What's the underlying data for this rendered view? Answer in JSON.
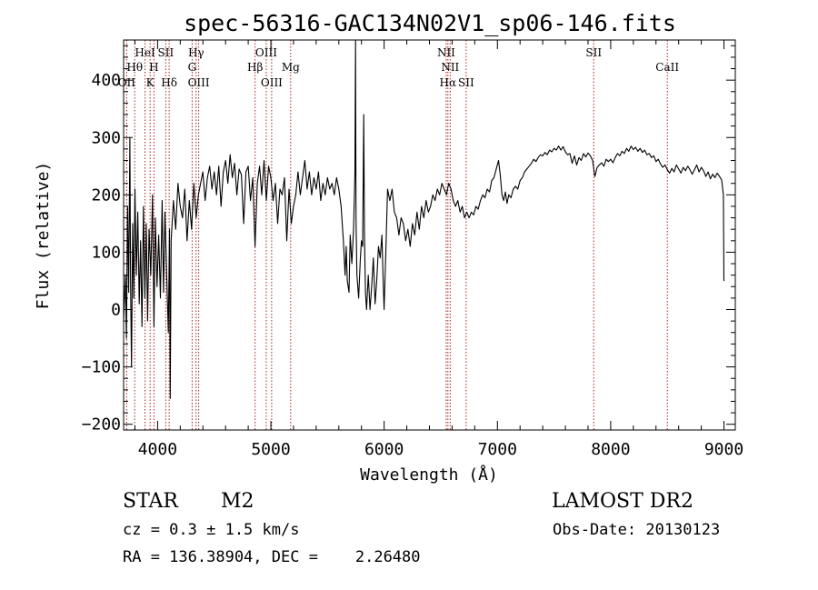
{
  "chart_data": {
    "type": "line",
    "title": "spec-56316-GAC134N02V1_sp06-146.fits",
    "xlabel": "Wavelength (Å)",
    "ylabel": "Flux (relative)",
    "xlim": [
      3700,
      9100
    ],
    "ylim": [
      -210,
      470
    ],
    "xticks": [
      4000,
      5000,
      6000,
      7000,
      8000,
      9000
    ],
    "yticks": [
      -200,
      -100,
      0,
      100,
      200,
      300,
      400
    ],
    "grid": false,
    "line_color": "#000000",
    "marker_color": "#aa2222",
    "spectral_lines": [
      {
        "label": "Hθ",
        "x": 3798,
        "row": 2
      },
      {
        "label": "OII",
        "x": 3727,
        "row": 3
      },
      {
        "label": "HeI",
        "x": 3889,
        "row": 1
      },
      {
        "label": "H",
        "x": 3968,
        "row": 2
      },
      {
        "label": "K",
        "x": 3934,
        "row": 3
      },
      {
        "label": "SII",
        "x": 4072,
        "row": 1
      },
      {
        "label": "Hδ",
        "x": 4102,
        "row": 3
      },
      {
        "label": "Hγ",
        "x": 4340,
        "row": 1
      },
      {
        "label": "G",
        "x": 4305,
        "row": 2
      },
      {
        "label": "OIII",
        "x": 4363,
        "row": 3
      },
      {
        "label": "OIII",
        "x": 4959,
        "row": 1
      },
      {
        "label": "Hβ",
        "x": 4861,
        "row": 2
      },
      {
        "label": "Mg",
        "x": 5175,
        "row": 2
      },
      {
        "label": "OIII",
        "x": 5007,
        "row": 3
      },
      {
        "label": "NII",
        "x": 6548,
        "row": 1
      },
      {
        "label": "NII",
        "x": 6583,
        "row": 2
      },
      {
        "label": "Hα",
        "x": 6563,
        "row": 3
      },
      {
        "label": "SII",
        "x": 6724,
        "row": 3
      },
      {
        "label": "SII",
        "x": 7850,
        "row": 1
      },
      {
        "label": "CaII",
        "x": 8500,
        "row": 2
      }
    ],
    "spectrum": [
      [
        3700,
        -20
      ],
      [
        3715,
        60
      ],
      [
        3725,
        -50
      ],
      [
        3735,
        180
      ],
      [
        3745,
        30
      ],
      [
        3755,
        300
      ],
      [
        3762,
        40
      ],
      [
        3770,
        -100
      ],
      [
        3780,
        150
      ],
      [
        3790,
        20
      ],
      [
        3800,
        210
      ],
      [
        3812,
        60
      ],
      [
        3825,
        170
      ],
      [
        3838,
        10
      ],
      [
        3850,
        120
      ],
      [
        3862,
        -30
      ],
      [
        3875,
        180
      ],
      [
        3888,
        20
      ],
      [
        3900,
        150
      ],
      [
        3912,
        -20
      ],
      [
        3925,
        140
      ],
      [
        3940,
        60
      ],
      [
        3955,
        200
      ],
      [
        3968,
        -30
      ],
      [
        3980,
        160
      ],
      [
        3995,
        40
      ],
      [
        4010,
        130
      ],
      [
        4025,
        20
      ],
      [
        4040,
        190
      ],
      [
        4052,
        30
      ],
      [
        4065,
        170
      ],
      [
        4080,
        60
      ],
      [
        4095,
        -40
      ],
      [
        4105,
        140
      ],
      [
        4112,
        -155
      ],
      [
        4120,
        120
      ],
      [
        4140,
        190
      ],
      [
        4160,
        140
      ],
      [
        4180,
        220
      ],
      [
        4200,
        180
      ],
      [
        4220,
        160
      ],
      [
        4240,
        210
      ],
      [
        4260,
        120
      ],
      [
        4280,
        190
      ],
      [
        4300,
        140
      ],
      [
        4320,
        220
      ],
      [
        4340,
        160
      ],
      [
        4360,
        200
      ],
      [
        4380,
        220
      ],
      [
        4400,
        240
      ],
      [
        4420,
        190
      ],
      [
        4440,
        230
      ],
      [
        4460,
        250
      ],
      [
        4480,
        210
      ],
      [
        4500,
        240
      ],
      [
        4520,
        200
      ],
      [
        4540,
        250
      ],
      [
        4560,
        180
      ],
      [
        4580,
        240
      ],
      [
        4600,
        260
      ],
      [
        4620,
        220
      ],
      [
        4640,
        270
      ],
      [
        4660,
        230
      ],
      [
        4680,
        255
      ],
      [
        4700,
        200
      ],
      [
        4720,
        245
      ],
      [
        4740,
        235
      ],
      [
        4760,
        150
      ],
      [
        4780,
        240
      ],
      [
        4800,
        250
      ],
      [
        4820,
        190
      ],
      [
        4840,
        230
      ],
      [
        4860,
        110
      ],
      [
        4880,
        220
      ],
      [
        4900,
        250
      ],
      [
        4920,
        200
      ],
      [
        4940,
        260
      ],
      [
        4960,
        190
      ],
      [
        4980,
        250
      ],
      [
        5000,
        230
      ],
      [
        5020,
        190
      ],
      [
        5040,
        220
      ],
      [
        5060,
        150
      ],
      [
        5080,
        210
      ],
      [
        5100,
        200
      ],
      [
        5120,
        230
      ],
      [
        5140,
        120
      ],
      [
        5160,
        210
      ],
      [
        5180,
        150
      ],
      [
        5200,
        180
      ],
      [
        5220,
        200
      ],
      [
        5240,
        240
      ],
      [
        5260,
        200
      ],
      [
        5280,
        230
      ],
      [
        5300,
        260
      ],
      [
        5320,
        210
      ],
      [
        5340,
        240
      ],
      [
        5360,
        200
      ],
      [
        5380,
        230
      ],
      [
        5400,
        210
      ],
      [
        5420,
        240
      ],
      [
        5440,
        190
      ],
      [
        5460,
        220
      ],
      [
        5480,
        200
      ],
      [
        5500,
        230
      ],
      [
        5520,
        210
      ],
      [
        5540,
        220
      ],
      [
        5560,
        200
      ],
      [
        5580,
        230
      ],
      [
        5600,
        210
      ],
      [
        5620,
        180
      ],
      [
        5640,
        120
      ],
      [
        5655,
        60
      ],
      [
        5665,
        110
      ],
      [
        5675,
        50
      ],
      [
        5690,
        30
      ],
      [
        5700,
        130
      ],
      [
        5715,
        80
      ],
      [
        5730,
        140
      ],
      [
        5742,
        240
      ],
      [
        5748,
        470
      ],
      [
        5752,
        160
      ],
      [
        5760,
        60
      ],
      [
        5775,
        20
      ],
      [
        5790,
        90
      ],
      [
        5800,
        120
      ],
      [
        5810,
        110
      ],
      [
        5820,
        340
      ],
      [
        5826,
        130
      ],
      [
        5835,
        30
      ],
      [
        5845,
        0
      ],
      [
        5860,
        60
      ],
      [
        5875,
        0
      ],
      [
        5890,
        40
      ],
      [
        5905,
        90
      ],
      [
        5920,
        10
      ],
      [
        5935,
        50
      ],
      [
        5950,
        110
      ],
      [
        5965,
        90
      ],
      [
        5980,
        130
      ],
      [
        5990,
        60
      ],
      [
        6000,
        0
      ],
      [
        6015,
        100
      ],
      [
        6030,
        210
      ],
      [
        6050,
        190
      ],
      [
        6070,
        210
      ],
      [
        6090,
        170
      ],
      [
        6110,
        160
      ],
      [
        6130,
        130
      ],
      [
        6150,
        160
      ],
      [
        6170,
        150
      ],
      [
        6190,
        120
      ],
      [
        6210,
        140
      ],
      [
        6230,
        110
      ],
      [
        6250,
        150
      ],
      [
        6270,
        130
      ],
      [
        6290,
        170
      ],
      [
        6310,
        140
      ],
      [
        6330,
        180
      ],
      [
        6350,
        160
      ],
      [
        6370,
        190
      ],
      [
        6390,
        170
      ],
      [
        6410,
        180
      ],
      [
        6430,
        200
      ],
      [
        6450,
        190
      ],
      [
        6470,
        210
      ],
      [
        6490,
        200
      ],
      [
        6510,
        220
      ],
      [
        6530,
        210
      ],
      [
        6550,
        200
      ],
      [
        6570,
        220
      ],
      [
        6590,
        210
      ],
      [
        6610,
        190
      ],
      [
        6630,
        180
      ],
      [
        6650,
        190
      ],
      [
        6670,
        170
      ],
      [
        6690,
        180
      ],
      [
        6710,
        160
      ],
      [
        6730,
        170
      ],
      [
        6750,
        160
      ],
      [
        6770,
        170
      ],
      [
        6790,
        165
      ],
      [
        6810,
        180
      ],
      [
        6830,
        175
      ],
      [
        6850,
        190
      ],
      [
        6870,
        200
      ],
      [
        6890,
        195
      ],
      [
        6910,
        210
      ],
      [
        6930,
        205
      ],
      [
        6950,
        225
      ],
      [
        6970,
        230
      ],
      [
        6990,
        245
      ],
      [
        7010,
        260
      ],
      [
        7025,
        235
      ],
      [
        7040,
        200
      ],
      [
        7055,
        190
      ],
      [
        7070,
        205
      ],
      [
        7085,
        185
      ],
      [
        7100,
        200
      ],
      [
        7120,
        195
      ],
      [
        7140,
        210
      ],
      [
        7160,
        215
      ],
      [
        7180,
        210
      ],
      [
        7200,
        225
      ],
      [
        7220,
        230
      ],
      [
        7240,
        240
      ],
      [
        7260,
        245
      ],
      [
        7280,
        250
      ],
      [
        7300,
        255
      ],
      [
        7320,
        262
      ],
      [
        7340,
        258
      ],
      [
        7360,
        265
      ],
      [
        7380,
        270
      ],
      [
        7400,
        268
      ],
      [
        7420,
        274
      ],
      [
        7440,
        270
      ],
      [
        7460,
        278
      ],
      [
        7480,
        275
      ],
      [
        7500,
        281
      ],
      [
        7520,
        278
      ],
      [
        7540,
        285
      ],
      [
        7560,
        278
      ],
      [
        7580,
        284
      ],
      [
        7600,
        275
      ],
      [
        7620,
        270
      ],
      [
        7640,
        272
      ],
      [
        7660,
        255
      ],
      [
        7680,
        268
      ],
      [
        7700,
        252
      ],
      [
        7720,
        265
      ],
      [
        7740,
        260
      ],
      [
        7760,
        272
      ],
      [
        7780,
        266
      ],
      [
        7800,
        273
      ],
      [
        7820,
        268
      ],
      [
        7840,
        260
      ],
      [
        7860,
        232
      ],
      [
        7880,
        248
      ],
      [
        7900,
        252
      ],
      [
        7920,
        256
      ],
      [
        7940,
        250
      ],
      [
        7960,
        262
      ],
      [
        7980,
        258
      ],
      [
        8000,
        262
      ],
      [
        8020,
        256
      ],
      [
        8040,
        265
      ],
      [
        8060,
        272
      ],
      [
        8080,
        268
      ],
      [
        8100,
        276
      ],
      [
        8120,
        272
      ],
      [
        8140,
        281
      ],
      [
        8160,
        276
      ],
      [
        8180,
        285
      ],
      [
        8200,
        279
      ],
      [
        8220,
        283
      ],
      [
        8240,
        276
      ],
      [
        8260,
        281
      ],
      [
        8280,
        274
      ],
      [
        8300,
        278
      ],
      [
        8320,
        270
      ],
      [
        8340,
        272
      ],
      [
        8360,
        265
      ],
      [
        8380,
        268
      ],
      [
        8400,
        258
      ],
      [
        8420,
        262
      ],
      [
        8440,
        254
      ],
      [
        8460,
        248
      ],
      [
        8480,
        252
      ],
      [
        8500,
        244
      ],
      [
        8520,
        238
      ],
      [
        8540,
        246
      ],
      [
        8560,
        240
      ],
      [
        8580,
        252
      ],
      [
        8600,
        245
      ],
      [
        8620,
        238
      ],
      [
        8640,
        248
      ],
      [
        8660,
        242
      ],
      [
        8680,
        250
      ],
      [
        8700,
        244
      ],
      [
        8720,
        236
      ],
      [
        8740,
        244
      ],
      [
        8760,
        252
      ],
      [
        8780,
        240
      ],
      [
        8800,
        248
      ],
      [
        8820,
        242
      ],
      [
        8840,
        232
      ],
      [
        8860,
        240
      ],
      [
        8880,
        228
      ],
      [
        8900,
        236
      ],
      [
        8920,
        230
      ],
      [
        8940,
        238
      ],
      [
        8960,
        232
      ],
      [
        8980,
        226
      ],
      [
        8995,
        200
      ],
      [
        9000,
        50
      ]
    ]
  },
  "info": {
    "class_label": "STAR",
    "subclass": "M2",
    "survey": "LAMOST DR2",
    "cz": "cz = 0.3 ± 1.5 km/s",
    "obs_date": "Obs-Date: 20130123",
    "radec": "RA = 136.38904, DEC =    2.26480"
  }
}
